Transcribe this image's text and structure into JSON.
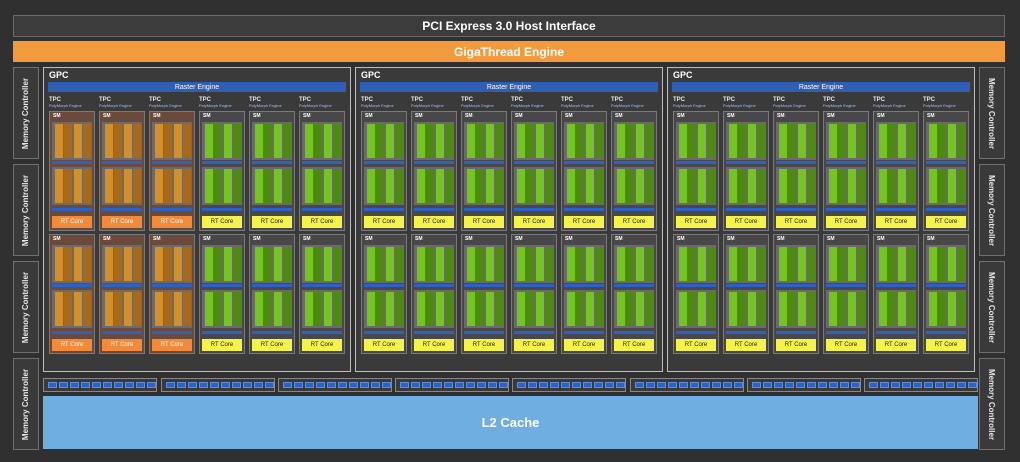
{
  "header": {
    "pcie_label": "PCI Express 3.0 Host Interface",
    "giga_label": "GigaThread Engine"
  },
  "memory_controller_label": "Memory Controller",
  "gpc_label": "GPC",
  "raster_label": "Raster Engine",
  "tpc_label": "TPC",
  "polymorph_label": "PolyMorph Engine",
  "sm_label": "SM",
  "rt_core_label": "RT Core",
  "l2_label": "L2 Cache",
  "gpc_count": 3,
  "tpcs_per_gpc": 6,
  "sms_per_tpc": 2,
  "highlighted_tpcs": 3,
  "colors": {
    "core": "#74c521",
    "highlight_core": "#d3902a",
    "rt_core": "#f5f34a",
    "highlight_rt": "#f28a3a",
    "giga": "#f39a3c",
    "l2": "#6eaee0",
    "highlight_border": "#e01414"
  }
}
